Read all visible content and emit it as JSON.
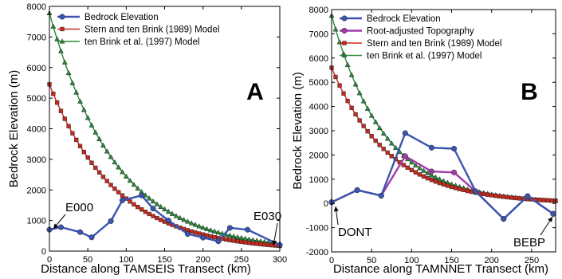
{
  "chart_data": [
    {
      "type": "line",
      "panel_label": "A",
      "xlabel": "Distance along TAMSEIS Transect (km)",
      "ylabel": "Bedrock Elevation (m)",
      "xlim": [
        0,
        300
      ],
      "ylim": [
        0,
        8000
      ],
      "xticks": [
        0,
        50,
        100,
        150,
        200,
        250,
        300
      ],
      "yticks": [
        0,
        1000,
        2000,
        3000,
        4000,
        5000,
        6000,
        7000,
        8000
      ],
      "legend_position": "top",
      "series": [
        {
          "name": "Bedrock Elevation",
          "color": "#3a55b0",
          "marker": "circle",
          "x": [
            0,
            15,
            40,
            55,
            80,
            95,
            120,
            135,
            155,
            180,
            200,
            220,
            235,
            258,
            300
          ],
          "y": [
            700,
            780,
            620,
            450,
            980,
            1660,
            1820,
            1390,
            1000,
            560,
            440,
            320,
            760,
            700,
            200
          ]
        },
        {
          "name": "Stern and ten Brink (1989) Model",
          "color": "#c8291e",
          "marker": "square",
          "model": "exp",
          "start": 5450,
          "end": 170,
          "x_range": [
            0,
            300
          ],
          "n_points": 61
        },
        {
          "name": "ten Brink et al. (1997) Model",
          "color": "#2a8a3a",
          "marker": "triangle",
          "model": "exp",
          "start": 7780,
          "end": 240,
          "x_range": [
            0,
            300
          ],
          "n_points": 61
        }
      ],
      "annotations": [
        {
          "text": "E000",
          "x": 0,
          "y": 700
        },
        {
          "text": "E030",
          "x": 300,
          "y": 200
        }
      ]
    },
    {
      "type": "line",
      "panel_label": "B",
      "xlabel": "Distance along TAMNNET Transect (km)",
      "ylabel": "Bedrock Elevation (m)",
      "xlim": [
        0,
        280
      ],
      "ylim": [
        -2000,
        8000
      ],
      "xticks": [
        0,
        50,
        100,
        150,
        200,
        250
      ],
      "yticks": [
        -2000,
        -1000,
        0,
        1000,
        2000,
        3000,
        4000,
        5000,
        6000,
        7000,
        8000
      ],
      "legend_position": "top",
      "series": [
        {
          "name": "Bedrock Elevation",
          "color": "#3a55b0",
          "marker": "circle",
          "x": [
            0,
            32,
            62,
            92,
            125,
            153,
            180,
            215,
            245,
            277
          ],
          "y": [
            50,
            550,
            320,
            2900,
            2300,
            2260,
            500,
            -640,
            300,
            -430
          ]
        },
        {
          "name": "Root-adjusted Topography",
          "color": "#a23aa6",
          "marker": "circle",
          "x": [
            0,
            32,
            62,
            92,
            125,
            153,
            180,
            215,
            245,
            277
          ],
          "y": [
            50,
            550,
            320,
            1950,
            1320,
            1280,
            500,
            -640,
            300,
            -430
          ]
        },
        {
          "name": "Stern and ten Brink (1989) Model",
          "color": "#c8291e",
          "marker": "square",
          "model": "exp",
          "start": 5600,
          "end": 110,
          "x_range": [
            0,
            280
          ],
          "n_points": 57
        },
        {
          "name": "ten Brink et al. (1997) Model",
          "color": "#2a8a3a",
          "marker": "triangle",
          "model": "exp",
          "start": 7750,
          "end": 110,
          "x_range": [
            0,
            280
          ],
          "n_points": 57
        }
      ],
      "annotations": [
        {
          "text": "DONT",
          "x": 0,
          "y": 50
        },
        {
          "text": "BEBP",
          "x": 277,
          "y": -430
        }
      ]
    }
  ]
}
